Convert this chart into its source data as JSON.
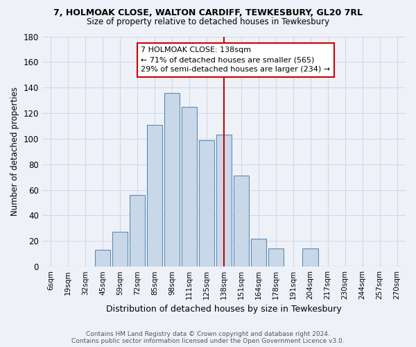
{
  "title": "7, HOLMOAK CLOSE, WALTON CARDIFF, TEWKESBURY, GL20 7RL",
  "subtitle": "Size of property relative to detached houses in Tewkesbury",
  "xlabel": "Distribution of detached houses by size in Tewkesbury",
  "ylabel": "Number of detached properties",
  "footnote1": "Contains HM Land Registry data © Crown copyright and database right 2024.",
  "footnote2": "Contains public sector information licensed under the Open Government Licence v3.0.",
  "bar_labels": [
    "6sqm",
    "19sqm",
    "32sqm",
    "45sqm",
    "59sqm",
    "72sqm",
    "85sqm",
    "98sqm",
    "111sqm",
    "125sqm",
    "138sqm",
    "151sqm",
    "164sqm",
    "178sqm",
    "191sqm",
    "204sqm",
    "217sqm",
    "230sqm",
    "244sqm",
    "257sqm",
    "270sqm"
  ],
  "bar_values": [
    0,
    0,
    0,
    13,
    27,
    56,
    111,
    136,
    125,
    99,
    103,
    71,
    22,
    14,
    0,
    14,
    0,
    0,
    0,
    0,
    0
  ],
  "bar_color": "#c8d8e8",
  "bar_edgecolor": "#5b8ab5",
  "vline_x": 10,
  "vline_color": "#cc0000",
  "annotation_text": "7 HOLMOAK CLOSE: 138sqm\n← 71% of detached houses are smaller (565)\n29% of semi-detached houses are larger (234) →",
  "annotation_box_edgecolor": "#cc0000",
  "ylim": [
    0,
    180
  ],
  "yticks": [
    0,
    20,
    40,
    60,
    80,
    100,
    120,
    140,
    160,
    180
  ],
  "grid_color": "#d0d8e8",
  "background_color": "#eef2f8"
}
